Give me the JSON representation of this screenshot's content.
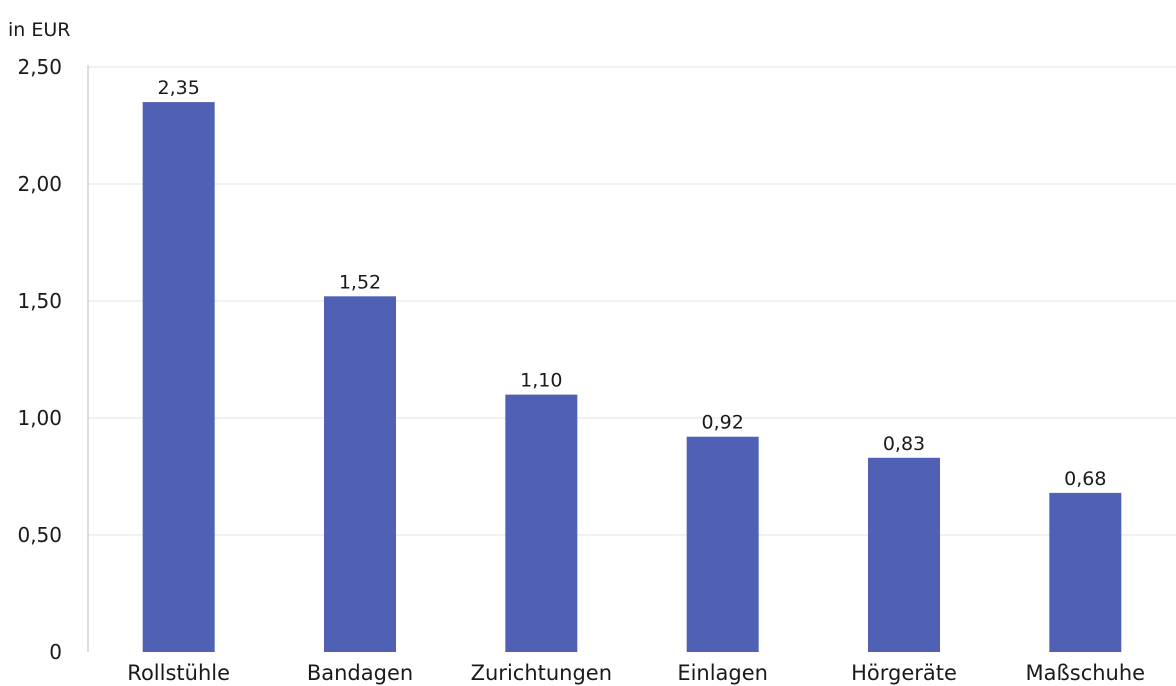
{
  "chart_data": {
    "type": "bar",
    "title": "",
    "ylabel": "in EUR",
    "xlabel": "",
    "categories": [
      "Rollstühle",
      "Bandagen",
      "Zurichtungen",
      "Einlagen",
      "Hörgeräte",
      "Maßschuhe"
    ],
    "values": [
      2.35,
      1.52,
      1.1,
      0.92,
      0.83,
      0.68
    ],
    "value_labels": [
      "2,35",
      "1,52",
      "1,10",
      "0,92",
      "0,83",
      "0,68"
    ],
    "ylim": [
      0,
      2.5
    ],
    "y_ticks": [
      0,
      0.5,
      1.0,
      1.5,
      2.0,
      2.5
    ],
    "y_tick_labels": [
      "0",
      "0,50",
      "1,00",
      "1,50",
      "2,00",
      "2,50"
    ],
    "grid": true,
    "legend": "none",
    "bar_color": "#5060b4",
    "grid_color": "#e3e3e3"
  }
}
